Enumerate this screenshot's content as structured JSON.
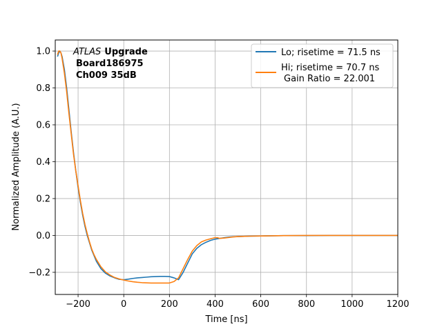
{
  "chart_data": {
    "type": "line",
    "title": "",
    "xlabel": "Time [ns]",
    "ylabel": "Normalized Amplitude (A.U.)",
    "xlim": [
      -300,
      1200
    ],
    "ylim": [
      -0.32,
      1.06
    ],
    "xticks": [
      -200,
      0,
      200,
      400,
      600,
      800,
      1000,
      1200
    ],
    "yticks": [
      -0.2,
      0.0,
      0.2,
      0.4,
      0.6,
      0.8,
      1.0
    ],
    "xtick_labels": [
      "−200",
      "0",
      "200",
      "400",
      "600",
      "800",
      "1000",
      "1200"
    ],
    "ytick_labels": [
      "−0.2",
      "0.0",
      "0.2",
      "0.4",
      "0.6",
      "0.8",
      "1.0"
    ],
    "grid": true,
    "legend_position": "top-right",
    "annotation": {
      "line1_italic": "ATLAS",
      "line1_bold": "Upgrade",
      "line2": "Board186975",
      "line3": "Ch009 35dB"
    },
    "series": [
      {
        "name": "Lo; risetime = 71.5 ns",
        "color": "#1f77b4",
        "x": [
          -290,
          -285,
          -280,
          -275,
          -270,
          -260,
          -250,
          -240,
          -230,
          -220,
          -210,
          -200,
          -190,
          -180,
          -170,
          -160,
          -150,
          -140,
          -130,
          -120,
          -100,
          -80,
          -60,
          -40,
          -20,
          0,
          20,
          40,
          60,
          80,
          100,
          120,
          140,
          160,
          180,
          200,
          220,
          240,
          260,
          280,
          300,
          320,
          340,
          360,
          380,
          400,
          420,
          440,
          460,
          480,
          500,
          550,
          600,
          650,
          700,
          800,
          900,
          1000,
          1100,
          1200
        ],
        "y": [
          0.97,
          0.99,
          1.0,
          0.99,
          0.97,
          0.9,
          0.8,
          0.68,
          0.56,
          0.45,
          0.35,
          0.26,
          0.18,
          0.11,
          0.05,
          0.0,
          -0.04,
          -0.08,
          -0.11,
          -0.14,
          -0.18,
          -0.205,
          -0.22,
          -0.23,
          -0.238,
          -0.24,
          -0.237,
          -0.233,
          -0.23,
          -0.228,
          -0.226,
          -0.224,
          -0.223,
          -0.222,
          -0.222,
          -0.223,
          -0.23,
          -0.24,
          -0.2,
          -0.15,
          -0.1,
          -0.07,
          -0.05,
          -0.037,
          -0.027,
          -0.02,
          -0.016,
          -0.012,
          -0.009,
          -0.007,
          -0.006,
          -0.004,
          -0.003,
          -0.002,
          -0.001,
          -0.001,
          0.0,
          0.0,
          0.0,
          0.0
        ]
      },
      {
        "name": "Hi; risetime = 70.7 ns",
        "name_line2": "Gain Ratio = 22.001",
        "color": "#ff7f0e",
        "x": [
          -290,
          -285,
          -280,
          -275,
          -270,
          -260,
          -250,
          -240,
          -230,
          -220,
          -210,
          -200,
          -190,
          -180,
          -170,
          -160,
          -150,
          -140,
          -130,
          -120,
          -100,
          -80,
          -60,
          -40,
          -20,
          0,
          20,
          40,
          60,
          80,
          100,
          120,
          140,
          160,
          180,
          200,
          220,
          240,
          260,
          280,
          300,
          320,
          340,
          360,
          380,
          400,
          410,
          420,
          440,
          460,
          480,
          500,
          550,
          600,
          650,
          700,
          800,
          900,
          1000,
          1100,
          1200
        ],
        "y": [
          0.98,
          1.0,
          1.0,
          0.99,
          0.96,
          0.88,
          0.78,
          0.66,
          0.55,
          0.44,
          0.35,
          0.27,
          0.19,
          0.12,
          0.06,
          0.01,
          -0.035,
          -0.075,
          -0.105,
          -0.13,
          -0.17,
          -0.198,
          -0.215,
          -0.228,
          -0.236,
          -0.242,
          -0.247,
          -0.251,
          -0.254,
          -0.256,
          -0.257,
          -0.258,
          -0.258,
          -0.258,
          -0.258,
          -0.258,
          -0.25,
          -0.23,
          -0.18,
          -0.13,
          -0.085,
          -0.055,
          -0.035,
          -0.025,
          -0.018,
          -0.012,
          -0.012,
          -0.016,
          -0.014,
          -0.011,
          -0.008,
          -0.006,
          -0.004,
          -0.003,
          -0.002,
          -0.001,
          0.0,
          0.0,
          0.0,
          0.0,
          0.0
        ]
      }
    ]
  }
}
